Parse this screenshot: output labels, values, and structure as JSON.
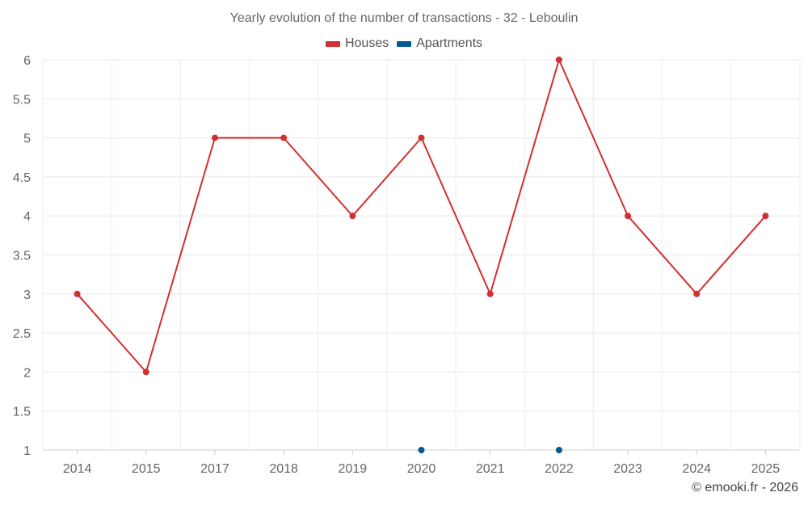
{
  "chart_data": {
    "type": "line",
    "title": "Yearly evolution of the number of transactions - 32 - Leboulin",
    "categories": [
      "2014",
      "2015",
      "2017",
      "2018",
      "2019",
      "2020",
      "2021",
      "2022",
      "2023",
      "2024",
      "2025"
    ],
    "series": [
      {
        "name": "Houses",
        "color": "#d32f2f",
        "values": [
          3,
          2,
          5,
          5,
          4,
          5,
          3,
          6,
          4,
          3,
          4
        ]
      },
      {
        "name": "Apartments",
        "color": "#005b94",
        "values": [
          null,
          null,
          null,
          null,
          null,
          1,
          null,
          1,
          null,
          null,
          null
        ]
      }
    ],
    "ylim": [
      1,
      6
    ],
    "yticks": [
      "1",
      "1.5",
      "2",
      "2.5",
      "3",
      "3.5",
      "4",
      "4.5",
      "5",
      "5.5",
      "6"
    ],
    "xlabel": "",
    "ylabel": "",
    "grid": true,
    "legend": "top-center"
  },
  "credit": "© emooki.fr - 2026"
}
